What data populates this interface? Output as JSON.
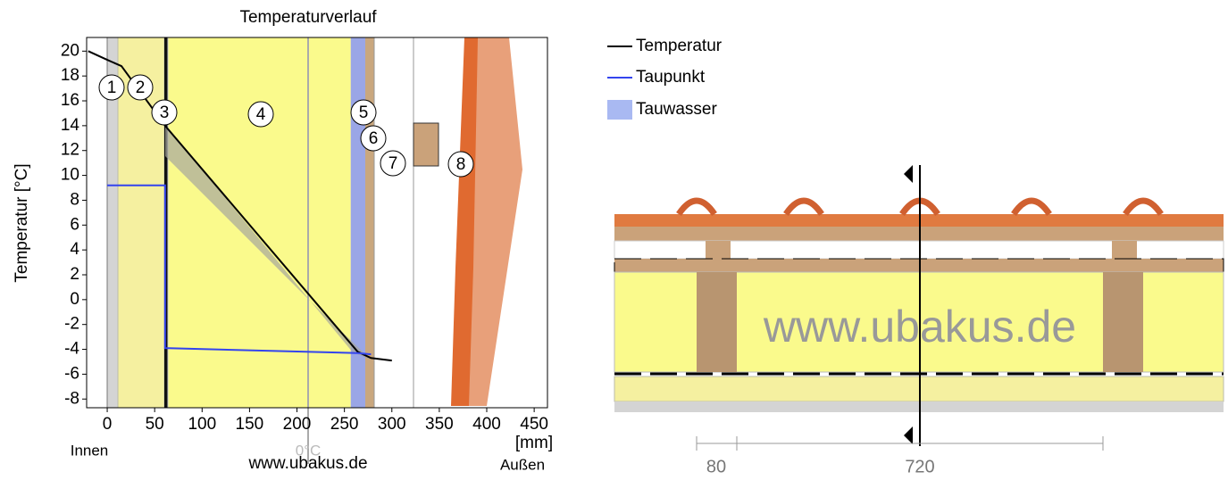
{
  "chart_data": {
    "type": "line",
    "title": "Temperaturverlauf",
    "ylabel": "Temperatur [°C]",
    "xlabel": "[mm]",
    "xlim": [
      -21.7,
      464
    ],
    "ylim": [
      -8.7,
      21.1
    ],
    "xticks": [
      0,
      50,
      100,
      150,
      200,
      250,
      300,
      350,
      400,
      450
    ],
    "yticks": [
      -8,
      -6,
      -4,
      -2,
      0,
      2,
      4,
      6,
      8,
      10,
      12,
      14,
      16,
      18,
      20
    ],
    "series": [
      {
        "name": "Temperatur",
        "color": "#000000",
        "x": [
          -20,
          0,
          15,
          61,
          264,
          278,
          300
        ],
        "values": [
          20,
          19.3,
          18.8,
          14,
          -4.2,
          -4.7,
          -4.9
        ]
      },
      {
        "name": "Taupunkt",
        "color": "#3344ee",
        "x": [
          0,
          61,
          61,
          264,
          278
        ],
        "values": [
          9.2,
          9.2,
          -3.9,
          -4.3,
          -4.4
        ]
      }
    ],
    "condensation": {
      "name": "Tauwasser",
      "color": "#a9b9f2"
    },
    "inside": "Innen",
    "outside": "Außen",
    "zero_label": "0°C",
    "watermark": "www.ubakus.de",
    "layers": [
      "1",
      "2",
      "3",
      "4",
      "5",
      "6",
      "7",
      "8"
    ]
  },
  "diagram": {
    "watermark": "www.ubakus.de",
    "dimensions": [
      "80",
      "720"
    ]
  }
}
